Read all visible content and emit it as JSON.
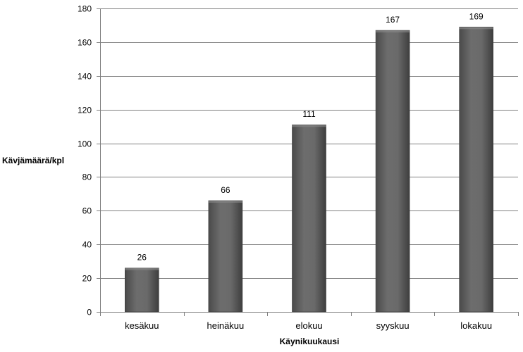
{
  "chart_data": {
    "type": "bar",
    "categories": [
      "kesäkuu",
      "heinäkuu",
      "elokuu",
      "syyskuu",
      "lokakuu"
    ],
    "values": [
      26,
      66,
      111,
      167,
      169
    ],
    "title": "",
    "xlabel": "Käynikuukausi",
    "ylabel": "Kävjämäärä/kpl",
    "ylim": [
      0,
      180
    ],
    "yticks": [
      0,
      20,
      40,
      60,
      80,
      100,
      120,
      140,
      160,
      180
    ],
    "grid": true,
    "legend": "none",
    "bar_color": "#5e5e5e",
    "grid_color": "#808080"
  }
}
